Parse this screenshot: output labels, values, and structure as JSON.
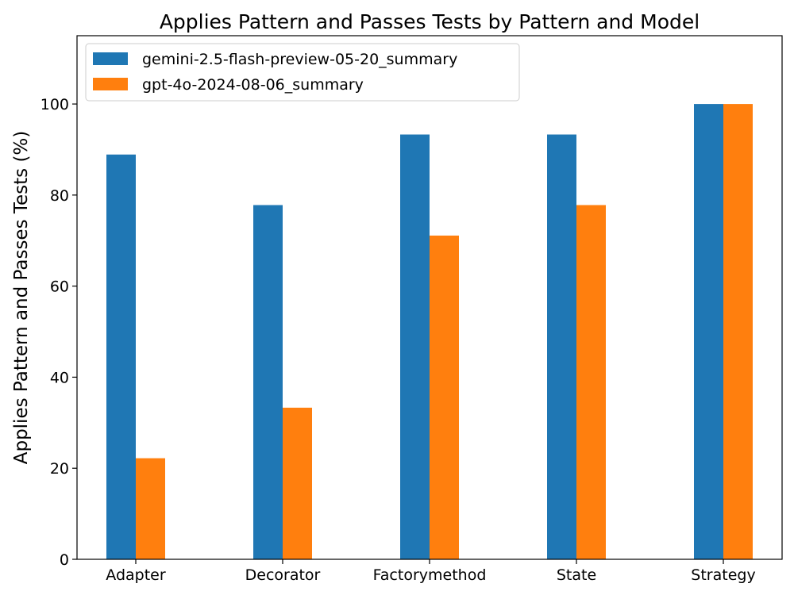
{
  "chart_data": {
    "type": "bar",
    "title": "Applies Pattern and Passes Tests by Pattern and Model",
    "xlabel": "",
    "ylabel": "Applies Pattern and Passes Tests (%)",
    "categories": [
      "Adapter",
      "Decorator",
      "Factorymethod",
      "State",
      "Strategy"
    ],
    "series": [
      {
        "name": "gemini-2.5-flash-preview-05-20_summary",
        "color": "#1f77b4",
        "values": [
          88.9,
          77.8,
          93.3,
          93.3,
          100.0
        ]
      },
      {
        "name": "gpt-4o-2024-08-06_summary",
        "color": "#ff7f0e",
        "values": [
          22.2,
          33.3,
          71.1,
          77.8,
          100.0
        ]
      }
    ],
    "ylim": [
      0,
      115
    ],
    "yticks": [
      0,
      20,
      40,
      60,
      80,
      100
    ],
    "grid": false,
    "legend_position": "top-left"
  }
}
